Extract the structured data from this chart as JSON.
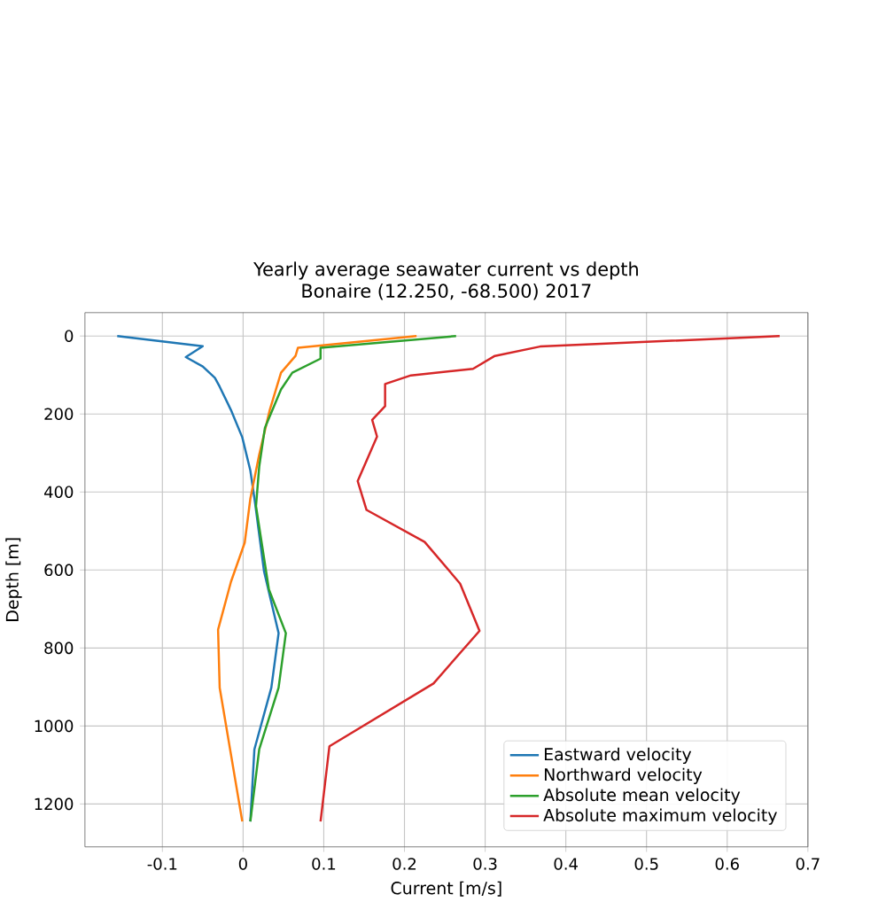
{
  "chart_data": {
    "type": "line",
    "title": "Yearly average seawater current vs depth",
    "subtitle": "Bonaire (12.250, -68.500) 2017",
    "xlabel": "Current [m/s]",
    "ylabel": "Depth [m]",
    "xlim": [
      -0.196,
      0.7
    ],
    "ylim": [
      1310,
      -60
    ],
    "xticks": [
      -0.1,
      0,
      0.1,
      0.2,
      0.3,
      0.4,
      0.5,
      0.6,
      0.7
    ],
    "yticks": [
      0,
      200,
      400,
      600,
      800,
      1000,
      1200
    ],
    "grid": true,
    "legend": "bottom right",
    "marker": "none",
    "line_style": "solid",
    "series": [
      {
        "name": "Eastward velocity",
        "color": "#1f77b4",
        "x": [
          -0.156,
          -0.05,
          -0.071,
          -0.05,
          -0.035,
          -0.029,
          -0.015,
          -0.001,
          0.009,
          0.015,
          0.026,
          0.044,
          0.035,
          0.014,
          0.009
        ],
        "values": [
          0,
          26,
          54,
          78,
          107,
          130,
          190,
          260,
          345,
          430,
          604,
          762,
          902,
          1060,
          1245
        ]
      },
      {
        "name": "Northward velocity",
        "color": "#ff7f0e",
        "x": [
          0.215,
          0.068,
          0.065,
          0.047,
          0.033,
          0.02,
          0.009,
          0.002,
          -0.015,
          -0.031,
          -0.029,
          -0.001
        ],
        "values": [
          0,
          30,
          51,
          94,
          190,
          304,
          417,
          530,
          630,
          753,
          902,
          1245
        ]
      },
      {
        "name": "Absolute mean velocity",
        "color": "#2ca02c",
        "x": [
          0.264,
          0.096,
          0.096,
          0.061,
          0.047,
          0.027,
          0.02,
          0.016,
          0.032,
          0.053,
          0.044,
          0.02,
          0.009
        ],
        "values": [
          0,
          30,
          58,
          94,
          137,
          236,
          335,
          436,
          650,
          762,
          902,
          1060,
          1245
        ]
      },
      {
        "name": "Absolute maximum velocity",
        "color": "#d62728",
        "x": [
          0.665,
          0.368,
          0.312,
          0.285,
          0.208,
          0.176,
          0.176,
          0.16,
          0.166,
          0.142,
          0.153,
          0.225,
          0.269,
          0.293,
          0.236,
          0.107,
          0.096
        ],
        "values": [
          0,
          27,
          51,
          84,
          101,
          123,
          180,
          215,
          258,
          372,
          446,
          528,
          635,
          756,
          891,
          1052,
          1245
        ]
      }
    ]
  }
}
